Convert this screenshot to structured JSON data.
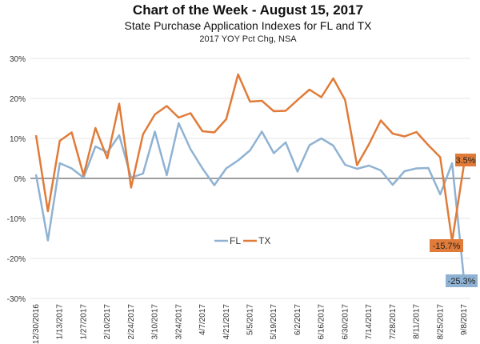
{
  "chart_data": {
    "type": "line",
    "title": "Chart of the Week - August 15, 2017",
    "subtitle": "State Purchase Application Indexes for FL and TX",
    "note": "2017 YOY Pct Chg, NSA",
    "xlabel": "",
    "ylabel": "",
    "ylim": [
      -30,
      30
    ],
    "yticks": [
      "30%",
      "20%",
      "10%",
      "0%",
      "-10%",
      "-20%",
      "-30%"
    ],
    "ytick_values": [
      30,
      20,
      10,
      0,
      -10,
      -20,
      -30
    ],
    "xtick_labels": [
      "12/30/2016",
      "1/13/2017",
      "1/27/2017",
      "2/10/2017",
      "2/24/2017",
      "3/10/2017",
      "3/24/2017",
      "4/7/2017",
      "4/21/2017",
      "5/5/2017",
      "5/19/2017",
      "6/2/2017",
      "6/16/2017",
      "6/30/2017",
      "7/14/2017",
      "7/28/2017",
      "8/11/2017",
      "8/25/2017",
      "9/8/2017"
    ],
    "points_per_series": 37,
    "grid": true,
    "legend": {
      "placement": "center-bottom",
      "entries": [
        "FL",
        "TX"
      ]
    },
    "series": [
      {
        "name": "FL",
        "color": "#8fb2d3",
        "values": [
          1,
          -15.5,
          3.8,
          2.5,
          0.2,
          8,
          6.5,
          10.8,
          0.2,
          1.2,
          11.7,
          0.8,
          13.8,
          7.3,
          2.5,
          -1.7,
          2.5,
          4.5,
          7,
          11.7,
          6.3,
          9,
          1.7,
          8.3,
          10,
          8.2,
          3.4,
          2.4,
          3.2,
          2,
          -1.6,
          1.8,
          2.5,
          2.6,
          -4,
          3.8,
          -25.3
        ]
      },
      {
        "name": "TX",
        "color": "#e07b39",
        "values": [
          10.8,
          -8.2,
          9.4,
          11.5,
          0.8,
          12.6,
          5,
          18.7,
          -2.3,
          11,
          16,
          18.1,
          15.2,
          16.3,
          11.8,
          11.5,
          14.8,
          26,
          19.2,
          19.4,
          16.8,
          16.9,
          19.6,
          22.2,
          20.3,
          25,
          19.6,
          3.3,
          8.5,
          14.5,
          11.2,
          10.5,
          11.6,
          8.3,
          5.3,
          -15.7,
          3.5
        ]
      }
    ],
    "annotations": [
      {
        "series": "TX",
        "index": 35,
        "text": "-15.7%"
      },
      {
        "series": "TX",
        "index": 36,
        "text": "3.5%"
      },
      {
        "series": "FL",
        "index": 36,
        "text": "-25.3%"
      }
    ]
  }
}
